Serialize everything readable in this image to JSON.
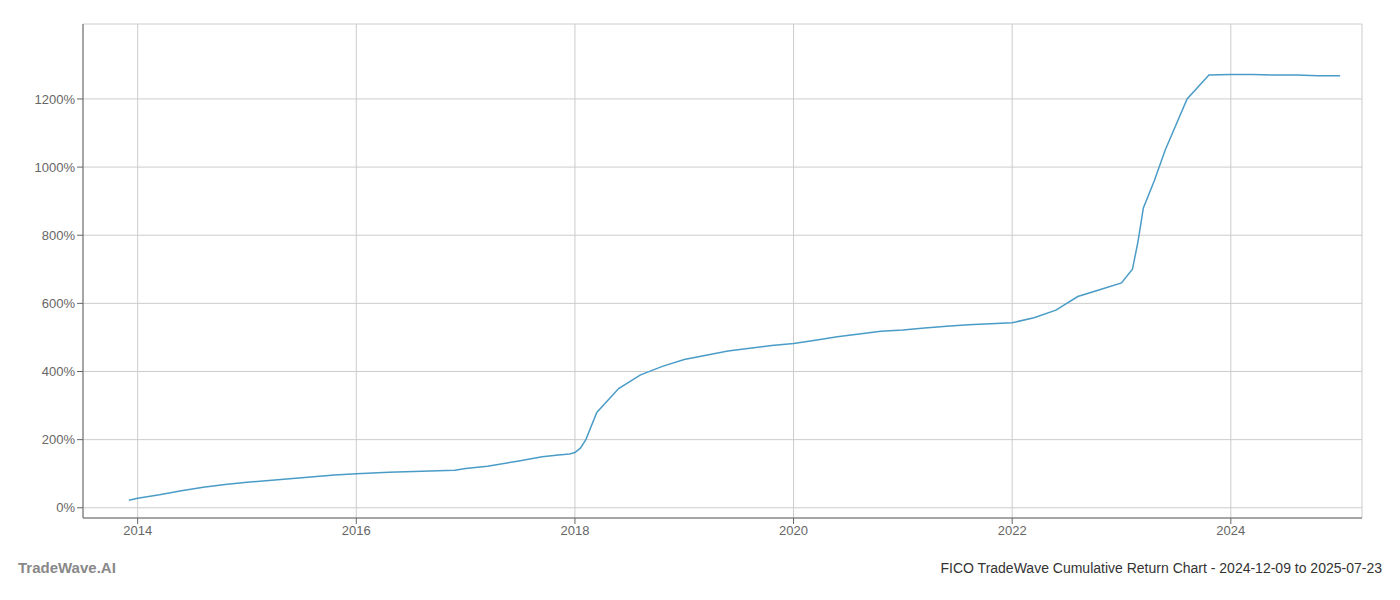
{
  "chart_data": {
    "type": "line",
    "title": "FICO TradeWave Cumulative Return Chart - 2024-12-09 to 2025-07-23",
    "annotations": [
      "TradeWave.AI"
    ],
    "x": [
      2013.92,
      2014.0,
      2014.2,
      2014.4,
      2014.6,
      2014.8,
      2015.0,
      2015.2,
      2015.5,
      2015.8,
      2016.0,
      2016.3,
      2016.6,
      2016.9,
      2017.0,
      2017.2,
      2017.5,
      2017.7,
      2017.85,
      2017.95,
      2018.0,
      2018.05,
      2018.1,
      2018.2,
      2018.4,
      2018.6,
      2018.8,
      2019.0,
      2019.2,
      2019.4,
      2019.6,
      2019.8,
      2020.0,
      2020.2,
      2020.4,
      2020.6,
      2020.8,
      2021.0,
      2021.2,
      2021.4,
      2021.6,
      2021.8,
      2022.0,
      2022.2,
      2022.4,
      2022.6,
      2022.8,
      2023.0,
      2023.1,
      2023.15,
      2023.2,
      2023.3,
      2023.4,
      2023.6,
      2023.8,
      2024.0,
      2024.2,
      2024.4,
      2024.6,
      2024.8,
      2025.0
    ],
    "values": [
      22,
      28,
      38,
      50,
      60,
      68,
      75,
      80,
      88,
      96,
      100,
      104,
      107,
      110,
      115,
      122,
      138,
      150,
      155,
      158,
      162,
      175,
      200,
      280,
      350,
      390,
      415,
      435,
      448,
      460,
      468,
      476,
      482,
      492,
      502,
      510,
      518,
      522,
      528,
      533,
      537,
      540,
      543,
      558,
      580,
      620,
      640,
      660,
      700,
      780,
      880,
      960,
      1050,
      1200,
      1270,
      1272,
      1272,
      1270,
      1270,
      1268,
      1268
    ],
    "color": "#4a9cc7",
    "xlim": [
      2013.5,
      2025.2
    ],
    "ylim": [
      -30,
      1420
    ],
    "xticks": [
      2014,
      2016,
      2018,
      2020,
      2022,
      2024
    ],
    "yticks": [
      {
        "value": 0,
        "label": "0%"
      },
      {
        "value": 200,
        "label": "200%"
      },
      {
        "value": 400,
        "label": "400%"
      },
      {
        "value": 600,
        "label": "600%"
      },
      {
        "value": 800,
        "label": "800%"
      },
      {
        "value": 1000,
        "label": "1000%"
      },
      {
        "value": 1200,
        "label": "1200%"
      }
    ],
    "grid": true
  }
}
